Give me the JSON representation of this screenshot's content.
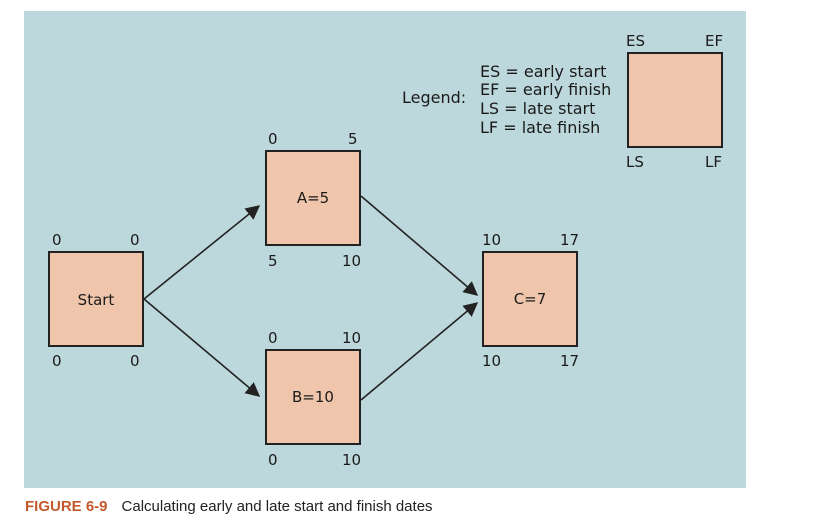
{
  "legend": {
    "heading": "Legend:",
    "lines": [
      "ES = early start",
      "EF = early finish",
      "LS = late start",
      "LF = late finish"
    ],
    "corner_es": "ES",
    "corner_ef": "EF",
    "corner_ls": "LS",
    "corner_lf": "LF"
  },
  "nodes": {
    "start": {
      "label": "Start",
      "es": "0",
      "ef": "0",
      "ls": "0",
      "lf": "0"
    },
    "a": {
      "label": "A=5",
      "es": "0",
      "ef": "5",
      "ls": "5",
      "lf": "10"
    },
    "b": {
      "label": "B=10",
      "es": "0",
      "ef": "10",
      "ls": "0",
      "lf": "10"
    },
    "c": {
      "label": "C=7",
      "es": "10",
      "ef": "17",
      "ls": "10",
      "lf": "17"
    }
  },
  "caption": {
    "figure": "FIGURE 6-9",
    "text": "Calculating early and late start and finish dates"
  },
  "colors": {
    "panel": "#bdd8dc",
    "node_fill": "#efc6ab",
    "caption_accent": "#c4592c"
  }
}
